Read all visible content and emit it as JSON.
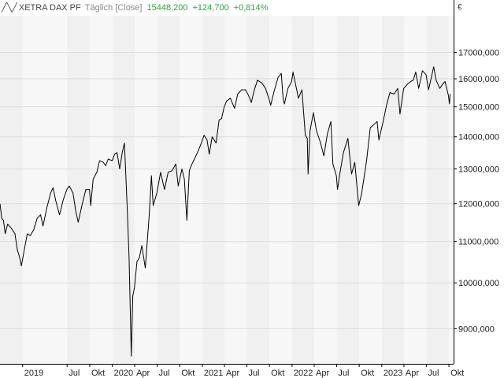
{
  "header": {
    "symbol": "╱╲╱",
    "title": "XETRA DAX PF",
    "mode": "Täglich [Close]",
    "last": "15448,200",
    "change": "+124,700",
    "change_pct": "+0,814%",
    "up_color": "#2aa836"
  },
  "currency": "€",
  "chart_data": {
    "type": "line",
    "title": "XETRA DAX PF",
    "xlabel": "",
    "ylabel": "",
    "y_scale": "log",
    "ylim": [
      8300,
      18500
    ],
    "xlim": [
      "2018-10-01",
      "2023-10-20"
    ],
    "grid": true,
    "legend": "none",
    "line_color": "#000000",
    "band_colors": [
      "#f0f0f0",
      "#f7f7f7"
    ],
    "x_ticks": [
      {
        "date": "2019-01-01",
        "label": "2019"
      },
      {
        "date": "2019-07-01",
        "label": "Jul"
      },
      {
        "date": "2019-10-01",
        "label": "Okt"
      },
      {
        "date": "2020-01-01",
        "label": "2020"
      },
      {
        "date": "2020-04-01",
        "label": "Apr"
      },
      {
        "date": "2020-07-01",
        "label": "Jul"
      },
      {
        "date": "2020-10-01",
        "label": "Okt"
      },
      {
        "date": "2021-01-01",
        "label": "2021"
      },
      {
        "date": "2021-04-01",
        "label": "Apr"
      },
      {
        "date": "2021-07-01",
        "label": "Jul"
      },
      {
        "date": "2021-10-01",
        "label": "Okt"
      },
      {
        "date": "2022-01-01",
        "label": "2022"
      },
      {
        "date": "2022-04-01",
        "label": "Apr"
      },
      {
        "date": "2022-07-01",
        "label": "Jul"
      },
      {
        "date": "2022-10-01",
        "label": "Okt"
      },
      {
        "date": "2023-01-01",
        "label": "2023"
      },
      {
        "date": "2023-04-01",
        "label": "Apr"
      },
      {
        "date": "2023-07-01",
        "label": "Jul"
      },
      {
        "date": "2023-10-01",
        "label": "Okt"
      }
    ],
    "y_ticks": [
      9000,
      10000,
      11000,
      12000,
      13000,
      14000,
      15000,
      16000,
      17000
    ],
    "y_tick_labels": [
      "9000,000",
      "10000,000",
      "11000,000",
      "12000,000",
      "13000,000",
      "14000,000",
      "15000,000",
      "16000,000",
      "17000,000"
    ],
    "series": [
      {
        "points": [
          [
            "2018-10-01",
            12000
          ],
          [
            "2018-10-08",
            11600
          ],
          [
            "2018-10-15",
            11550
          ],
          [
            "2018-10-22",
            11200
          ],
          [
            "2018-11-01",
            11450
          ],
          [
            "2018-11-15",
            11350
          ],
          [
            "2018-12-01",
            11200
          ],
          [
            "2018-12-10",
            10800
          ],
          [
            "2018-12-20",
            10600
          ],
          [
            "2018-12-27",
            10400
          ],
          [
            "2019-01-08",
            10800
          ],
          [
            "2019-01-20",
            11200
          ],
          [
            "2019-02-01",
            11150
          ],
          [
            "2019-02-15",
            11300
          ],
          [
            "2019-03-01",
            11600
          ],
          [
            "2019-03-15",
            11700
          ],
          [
            "2019-03-25",
            11400
          ],
          [
            "2019-04-10",
            11900
          ],
          [
            "2019-04-25",
            12300
          ],
          [
            "2019-05-05",
            12450
          ],
          [
            "2019-05-15",
            12100
          ],
          [
            "2019-05-31",
            11700
          ],
          [
            "2019-06-15",
            12100
          ],
          [
            "2019-06-30",
            12400
          ],
          [
            "2019-07-10",
            12500
          ],
          [
            "2019-07-25",
            12300
          ],
          [
            "2019-08-05",
            11800
          ],
          [
            "2019-08-15",
            11500
          ],
          [
            "2019-08-30",
            11950
          ],
          [
            "2019-09-15",
            12400
          ],
          [
            "2019-09-30",
            12400
          ],
          [
            "2019-10-05",
            11950
          ],
          [
            "2019-10-15",
            12700
          ],
          [
            "2019-10-30",
            12900
          ],
          [
            "2019-11-10",
            13250
          ],
          [
            "2019-11-25",
            13200
          ],
          [
            "2019-12-05",
            13100
          ],
          [
            "2019-12-15",
            13300
          ],
          [
            "2019-12-31",
            13250
          ],
          [
            "2020-01-10",
            13450
          ],
          [
            "2020-01-20",
            13500
          ],
          [
            "2020-01-31",
            13000
          ],
          [
            "2020-02-10",
            13500
          ],
          [
            "2020-02-19",
            13800
          ],
          [
            "2020-02-25",
            12800
          ],
          [
            "2020-03-02",
            11800
          ],
          [
            "2020-03-09",
            10600
          ],
          [
            "2020-03-16",
            8900
          ],
          [
            "2020-03-18",
            8450
          ],
          [
            "2020-03-24",
            9700
          ],
          [
            "2020-03-31",
            9900
          ],
          [
            "2020-04-10",
            10500
          ],
          [
            "2020-04-20",
            10600
          ],
          [
            "2020-04-30",
            10900
          ],
          [
            "2020-05-14",
            10350
          ],
          [
            "2020-05-29",
            11600
          ],
          [
            "2020-06-08",
            12800
          ],
          [
            "2020-06-15",
            11950
          ],
          [
            "2020-06-30",
            12300
          ],
          [
            "2020-07-15",
            12900
          ],
          [
            "2020-07-31",
            12400
          ],
          [
            "2020-08-15",
            12900
          ],
          [
            "2020-08-31",
            12950
          ],
          [
            "2020-09-15",
            13150
          ],
          [
            "2020-09-25",
            12500
          ],
          [
            "2020-10-10",
            13000
          ],
          [
            "2020-10-20",
            12700
          ],
          [
            "2020-10-30",
            11550
          ],
          [
            "2020-11-09",
            12950
          ],
          [
            "2020-11-20",
            13150
          ],
          [
            "2020-11-30",
            13300
          ],
          [
            "2020-12-15",
            13550
          ],
          [
            "2020-12-28",
            13800
          ],
          [
            "2021-01-08",
            14050
          ],
          [
            "2021-01-20",
            13900
          ],
          [
            "2021-01-29",
            13450
          ],
          [
            "2021-02-10",
            14000
          ],
          [
            "2021-02-26",
            13800
          ],
          [
            "2021-03-10",
            14550
          ],
          [
            "2021-03-20",
            14600
          ],
          [
            "2021-03-31",
            15000
          ],
          [
            "2021-04-10",
            15200
          ],
          [
            "2021-04-25",
            15300
          ],
          [
            "2021-05-12",
            14950
          ],
          [
            "2021-05-25",
            15450
          ],
          [
            "2021-06-10",
            15600
          ],
          [
            "2021-06-25",
            15600
          ],
          [
            "2021-07-08",
            15400
          ],
          [
            "2021-07-19",
            15150
          ],
          [
            "2021-07-30",
            15550
          ],
          [
            "2021-08-13",
            15950
          ],
          [
            "2021-08-31",
            15850
          ],
          [
            "2021-09-15",
            15650
          ],
          [
            "2021-09-30",
            15250
          ],
          [
            "2021-10-06",
            15050
          ],
          [
            "2021-10-20",
            15550
          ],
          [
            "2021-11-05",
            16050
          ],
          [
            "2021-11-18",
            16200
          ],
          [
            "2021-11-26",
            15250
          ],
          [
            "2021-12-01",
            15100
          ],
          [
            "2021-12-15",
            15650
          ],
          [
            "2021-12-30",
            15900
          ],
          [
            "2022-01-05",
            16250
          ],
          [
            "2022-01-15",
            15800
          ],
          [
            "2022-01-27",
            15300
          ],
          [
            "2022-02-10",
            15600
          ],
          [
            "2022-02-24",
            14050
          ],
          [
            "2022-03-04",
            13950
          ],
          [
            "2022-03-07",
            12850
          ],
          [
            "2022-03-15",
            14200
          ],
          [
            "2022-03-29",
            14800
          ],
          [
            "2022-04-10",
            14200
          ],
          [
            "2022-04-27",
            13800
          ],
          [
            "2022-05-10",
            13400
          ],
          [
            "2022-05-25",
            14100
          ],
          [
            "2022-06-08",
            14500
          ],
          [
            "2022-06-16",
            13150
          ],
          [
            "2022-06-30",
            12800
          ],
          [
            "2022-07-05",
            12400
          ],
          [
            "2022-07-15",
            12900
          ],
          [
            "2022-07-29",
            13500
          ],
          [
            "2022-08-16",
            13950
          ],
          [
            "2022-08-31",
            12850
          ],
          [
            "2022-09-13",
            13200
          ],
          [
            "2022-09-29",
            11950
          ],
          [
            "2022-10-10",
            12250
          ],
          [
            "2022-10-20",
            12700
          ],
          [
            "2022-10-31",
            13250
          ],
          [
            "2022-11-15",
            14300
          ],
          [
            "2022-11-30",
            14400
          ],
          [
            "2022-12-13",
            14500
          ],
          [
            "2022-12-20",
            13900
          ],
          [
            "2023-01-05",
            14450
          ],
          [
            "2023-01-20",
            15050
          ],
          [
            "2023-02-03",
            15500
          ],
          [
            "2023-02-20",
            15450
          ],
          [
            "2023-03-07",
            15650
          ],
          [
            "2023-03-16",
            14750
          ],
          [
            "2023-03-31",
            15650
          ],
          [
            "2023-04-15",
            15800
          ],
          [
            "2023-04-28",
            15900
          ],
          [
            "2023-05-09",
            15950
          ],
          [
            "2023-05-19",
            16250
          ],
          [
            "2023-05-31",
            15650
          ],
          [
            "2023-06-15",
            16300
          ],
          [
            "2023-06-30",
            16150
          ],
          [
            "2023-07-10",
            15600
          ],
          [
            "2023-07-31",
            16450
          ],
          [
            "2023-08-10",
            15950
          ],
          [
            "2023-08-25",
            15650
          ],
          [
            "2023-09-05",
            15800
          ],
          [
            "2023-09-15",
            15900
          ],
          [
            "2023-09-29",
            15400
          ],
          [
            "2023-10-03",
            15100
          ],
          [
            "2023-10-06",
            15450
          ]
        ]
      }
    ]
  }
}
